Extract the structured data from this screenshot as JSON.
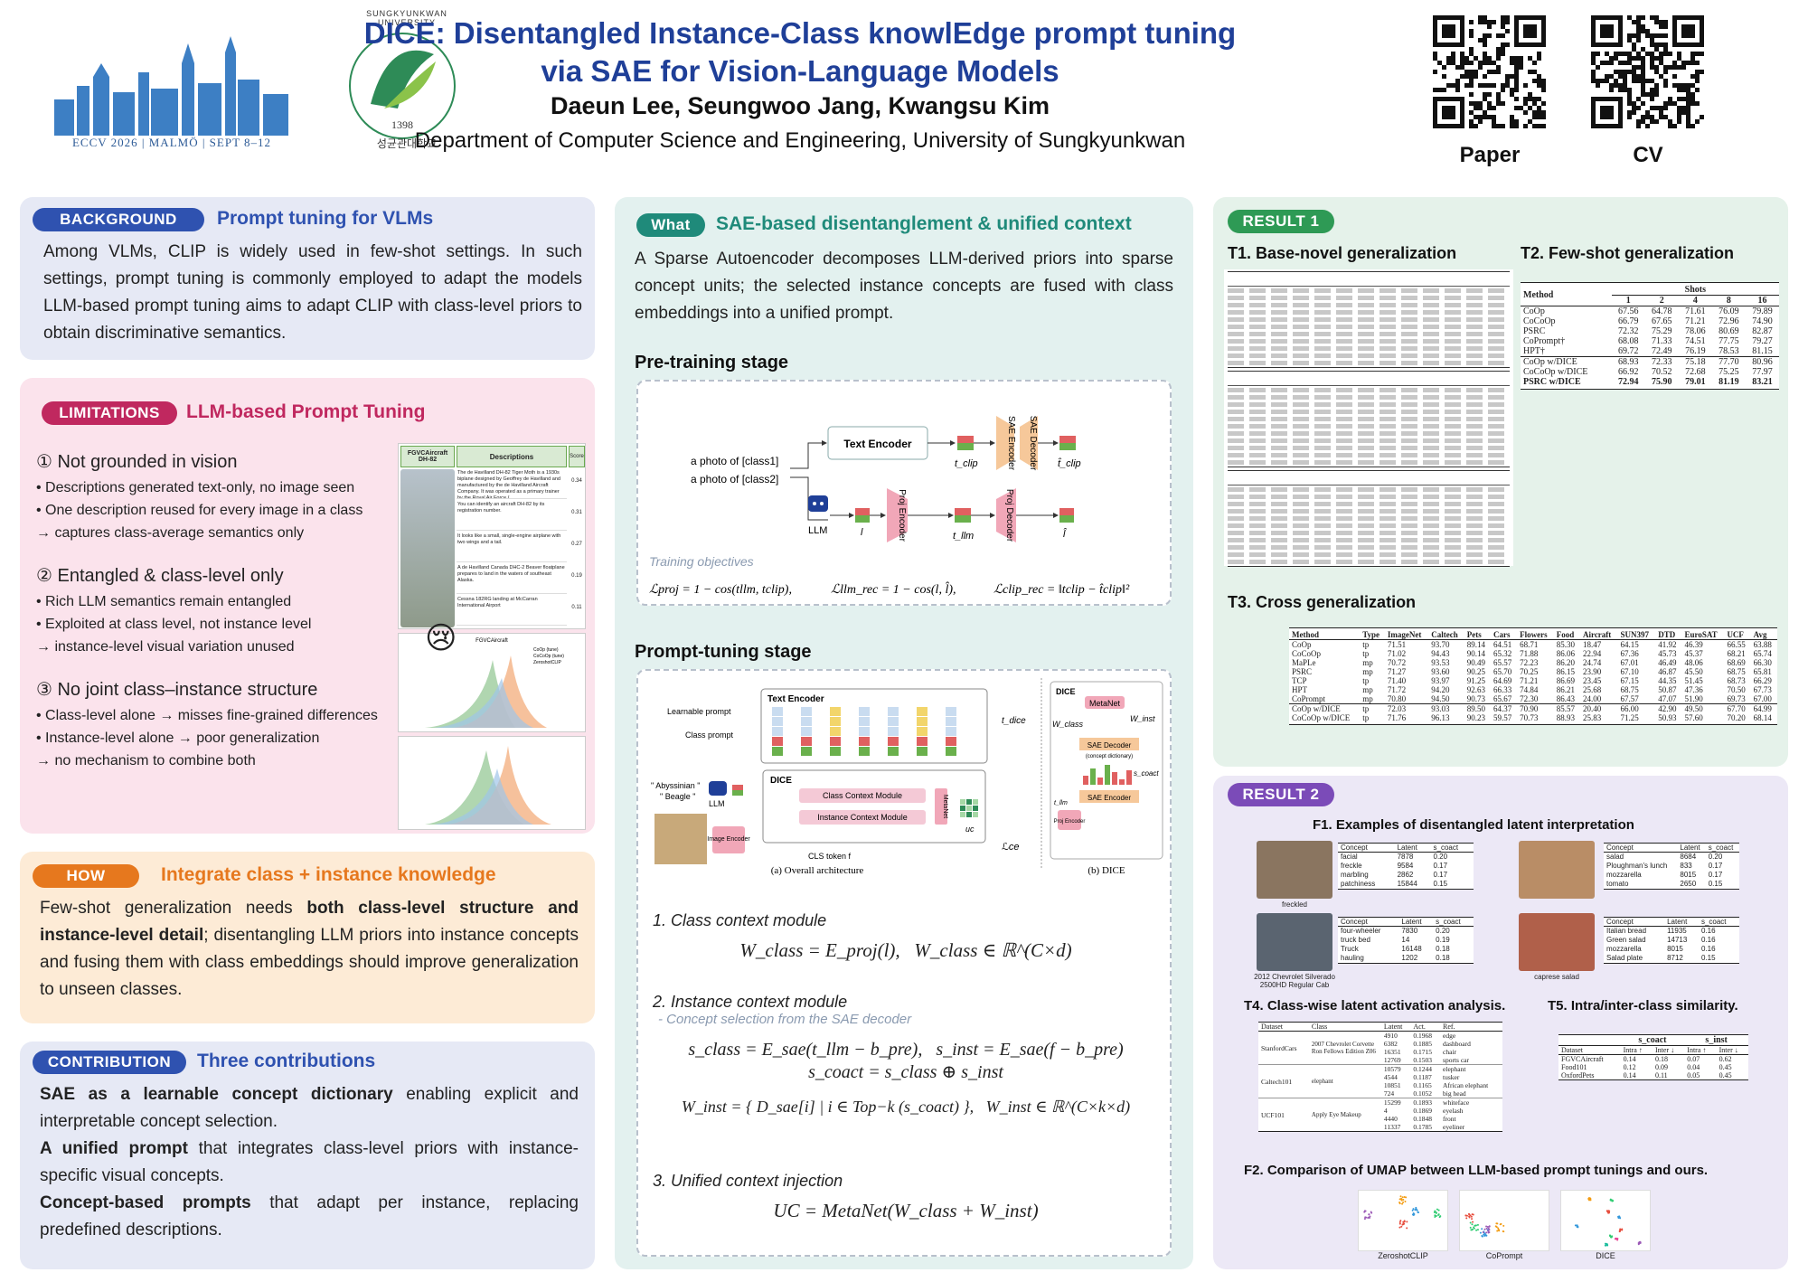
{
  "header": {
    "title_line1": "DICE: Disentangled Instance-Class knowlEdge prompt tuning",
    "title_line2": "via SAE for Vision-Language Models",
    "authors": "Daeun Lee, Seungwoo Jang, Kwangsu Kim",
    "affiliation": "Department of Computer Science and Engineering, University of Sungkyunkwan",
    "conf_banner": "ECCV 2026 | MALMÖ | SEPT 8–12",
    "univ_name": "SUNGKYUNKWAN UNIVERSITY",
    "univ_year": "1398",
    "univ_korean": "성균관대학교",
    "qr_paper": "Paper",
    "qr_cv": "CV"
  },
  "background": {
    "pill": "BACKGROUND",
    "title": "Prompt tuning for VLMs",
    "body": "Among VLMs, CLIP is widely used in few-shot settings. In such settings, prompt tuning is commonly employed to adapt the models LLM-based prompt tuning aims to adapt CLIP with class-level priors to obtain discriminative semantics."
  },
  "limitations": {
    "pill": "LIMITATIONS",
    "title": "LLM-based Prompt Tuning",
    "items": [
      {
        "head": "① Not grounded in vision",
        "bullets": [
          "• Descriptions generated text-only, no image seen",
          "• One description reused for every image in a class",
          "→ captures class-average semantics only"
        ]
      },
      {
        "head": "② Entangled & class-level only",
        "bullets": [
          "• Rich LLM semantics remain entangled",
          "• Exploited at class level, not instance level",
          "→ instance-level visual variation unused"
        ]
      },
      {
        "head": "③ No joint class–instance structure",
        "bullets": [
          "• Class-level alone → misses fine-grained differences",
          "• Instance-level alone → poor generalization",
          "→ no mechanism to combine both"
        ]
      }
    ],
    "fig_col1": "FGVCAircraft DH-82",
    "fig_col2": "Descriptions",
    "fig_col3": "Score",
    "fig_rows": [
      {
        "text": "The de Havilland DH-82 Tiger Moth is a 1930s biplane designed by Geoffrey de Havilland and manufactured by the de Havilland Aircraft Company. It was operated as a primary trainer by the Royal Air Force (",
        "score": "0.34"
      },
      {
        "text": "You can identify an aircraft DH-82 by its registration number.",
        "score": "0.31"
      },
      {
        "text": "It looks like a small, single-engine airplane with two wings and a tail.",
        "score": "0.27"
      },
      {
        "text": "A de Havilland Canada DHC-2 Beaver floatplane prepares to land in the waters of southeast Alaska.",
        "score": "0.19"
      },
      {
        "text": "Cessna 182RG landing at McCarran International Airport",
        "score": "0.11"
      }
    ],
    "hist_title": "FGVCAircraft",
    "hist_legend": [
      "CoOp (tune)",
      "CoCoOp (tune)",
      "ZeroshotCLIP"
    ],
    "emoji": "😢"
  },
  "how": {
    "pill": "HOW",
    "title": "Integrate class + instance knowledge",
    "pre": "Few-shot generalization needs ",
    "bold1": "both class-level structure and instance-level detail",
    "post": "; disentangling LLM priors into instance concepts and fusing them with class embeddings should improve generalization to unseen classes."
  },
  "contribution": {
    "pill": "CONTRIBUTION",
    "title": "Three contributions",
    "items": [
      {
        "bold": "SAE as a learnable concept dictionary",
        "rest": " enabling explicit and interpretable concept selection."
      },
      {
        "bold": "A unified prompt",
        "rest": " that integrates class-level priors with instance-specific visual concepts."
      },
      {
        "bold": "Concept-based prompts",
        "rest": " that adapt per instance, replacing predefined descriptions."
      }
    ]
  },
  "what": {
    "pill": "What",
    "title": "SAE-based disentanglement & unified context",
    "body": "A Sparse Autoencoder decomposes LLM-derived priors into sparse concept units; the selected instance concepts are fused with class embeddings into a unified prompt.",
    "pretrain_title": "Pre-training stage",
    "prompt1": "a photo of [class1]",
    "prompt2": "a photo of [class2]",
    "text_encoder": "Text Encoder",
    "sae_encoder": "SAE Encoder",
    "sae_decoder": "SAE Decoder",
    "proj_encoder": "Proj Encoder",
    "proj_decoder": "Proj Decoder",
    "llm": "LLM",
    "t_clip": "t_clip",
    "t_clip_hat": "t̂_clip",
    "l": "l",
    "t_llm": "t_llm",
    "l_hat": "l̂",
    "objectives_label": "Training objectives",
    "eq_proj": "ℒproj = 1 − cos(tllm, tclip),",
    "eq_llm": "ℒllm_rec = 1 − cos(l, l̂),",
    "eq_clip": "ℒclip_rec = ‖tclip − t̂clip‖²",
    "prompttune_title": "Prompt-tuning stage",
    "learnable_prompt": "Learnable prompt",
    "class_prompt": "Class prompt",
    "dice_label": "DICE",
    "class_ctx": "Class Context Module",
    "inst_ctx": "Instance Context Module",
    "metanet": "MetaNet",
    "image_encoder": "Image Encoder",
    "cls_token": "CLS token f",
    "abyssinian": "\" Abyssinian \"",
    "beagle": "\" Beagle \"",
    "uc": "uc",
    "t_dice": "t_dice",
    "l_ce": "ℒce",
    "cap_a": "(a) Overall architecture",
    "cap_b": "(b) DICE",
    "w_class": "W_class",
    "w_inst": "W_inst",
    "s_coact": "s_coact",
    "concept_dict": "(concept dictionary)",
    "m1_title": "1. Class context module",
    "m1_eq": "W_class = E_proj(l),   W_class ∈ ℝ^(C×d)",
    "m2_title": "2. Instance context module",
    "m2_sub": "- Concept selection from the SAE decoder",
    "m2_eq1": "s_class = E_sae(t_llm − b_pre),   s_inst = E_sae(f − b_pre)",
    "m2_eq2": "s_coact = s_class ⊕ s_inst",
    "m2_eq3": "W_inst = { D_sae[i] | i ∈ Top−k (s_coact) },   W_inst ∈ ℝ^(C×k×d)",
    "m3_title": "3. Unified context injection",
    "m3_eq": "UC = MetaNet(W_class + W_inst)"
  },
  "result1": {
    "pill": "RESULT 1",
    "t1_title": "T1. Base-novel generalization",
    "t2_title": "T2. Few-shot generalization",
    "t3_title": "T3. Cross generalization",
    "t2_header": [
      "Method",
      "1",
      "2",
      "4",
      "8",
      "16"
    ],
    "t2_shots": "Shots",
    "t2_rows": [
      [
        "CoOp",
        "67.56",
        "64.78",
        "71.61",
        "76.09",
        "79.89"
      ],
      [
        "CoCoOp",
        "66.79",
        "67.65",
        "71.21",
        "72.96",
        "74.90"
      ],
      [
        "PSRC",
        "72.32",
        "75.29",
        "78.06",
        "80.69",
        "82.87"
      ],
      [
        "CoPrompt†",
        "68.08",
        "71.33",
        "74.51",
        "77.75",
        "79.27"
      ],
      [
        "HPT†",
        "69.72",
        "72.49",
        "76.19",
        "78.53",
        "81.15"
      ]
    ],
    "t2_ours": [
      [
        "CoOp w/DICE",
        "68.93",
        "72.33",
        "75.18",
        "77.70",
        "80.96"
      ],
      [
        "CoCoOp w/DICE",
        "66.92",
        "70.52",
        "72.68",
        "75.25",
        "77.97"
      ],
      [
        "PSRC w/DICE",
        "72.94",
        "75.90",
        "79.01",
        "81.19",
        "83.21"
      ]
    ],
    "t3_header": [
      "Method",
      "Type",
      "ImageNet",
      "Caltech",
      "Pets",
      "Cars",
      "Flowers",
      "Food",
      "Aircraft",
      "SUN397",
      "DTD",
      "EuroSAT",
      "UCF",
      "Avg"
    ],
    "t3_rows": [
      [
        "CoOp",
        "tp",
        "71.51",
        "93.70",
        "89.14",
        "64.51",
        "68.71",
        "85.30",
        "18.47",
        "64.15",
        "41.92",
        "46.39",
        "66.55",
        "63.88"
      ],
      [
        "CoCoOp",
        "tp",
        "71.02",
        "94.43",
        "90.14",
        "65.32",
        "71.88",
        "86.06",
        "22.94",
        "67.36",
        "45.73",
        "45.37",
        "68.21",
        "65.74"
      ],
      [
        "MaPLe",
        "mp",
        "70.72",
        "93.53",
        "90.49",
        "65.57",
        "72.23",
        "86.20",
        "24.74",
        "67.01",
        "46.49",
        "48.06",
        "68.69",
        "66.30"
      ],
      [
        "PSRC",
        "mp",
        "71.27",
        "93.60",
        "90.25",
        "65.70",
        "70.25",
        "86.15",
        "23.90",
        "67.10",
        "46.87",
        "45.50",
        "68.75",
        "65.81"
      ],
      [
        "TCP",
        "tp",
        "71.40",
        "93.97",
        "91.25",
        "64.69",
        "71.21",
        "86.69",
        "23.45",
        "67.15",
        "44.35",
        "51.45",
        "68.73",
        "66.29"
      ],
      [
        "HPT",
        "mp",
        "71.72",
        "94.20",
        "92.63",
        "66.33",
        "74.84",
        "86.21",
        "25.68",
        "68.75",
        "50.87",
        "47.36",
        "70.50",
        "67.73"
      ],
      [
        "CoPrompt",
        "mp",
        "70.80",
        "94.50",
        "90.73",
        "65.67",
        "72.30",
        "86.43",
        "24.00",
        "67.57",
        "47.07",
        "51.90",
        "69.73",
        "67.00"
      ]
    ],
    "t3_ours": [
      [
        "CoOp w/DICE",
        "tp",
        "72.03",
        "93.03",
        "89.50",
        "64.37",
        "70.90",
        "85.57",
        "20.40",
        "66.00",
        "42.90",
        "49.50",
        "67.70",
        "64.99"
      ],
      [
        "CoCoOp w/DICE",
        "tp",
        "71.76",
        "96.13",
        "90.23",
        "59.57",
        "70.73",
        "88.93",
        "25.83",
        "71.25",
        "50.93",
        "57.60",
        "70.20",
        "68.14"
      ]
    ]
  },
  "result2": {
    "pill": "RESULT 2",
    "f1_title": "F1. Examples of disentangled latent interpretation",
    "f1_headers": [
      "Concept",
      "Latent",
      "s_coact"
    ],
    "f1_a": [
      [
        "facial",
        "7878",
        "0.20"
      ],
      [
        "freckle",
        "9584",
        "0.17"
      ],
      [
        "marbling",
        "2862",
        "0.17"
      ],
      [
        "patchiness",
        "15844",
        "0.15"
      ]
    ],
    "f1_a_cap": "freckled",
    "f1_b": [
      [
        "salad",
        "8684",
        "0.20"
      ],
      [
        "Ploughman's lunch",
        "833",
        "0.17"
      ],
      [
        "mozzarella",
        "8015",
        "0.17"
      ],
      [
        "tomato",
        "2650",
        "0.15"
      ]
    ],
    "f1_c": [
      [
        "four-wheeler",
        "7830",
        "0.20"
      ],
      [
        "truck bed",
        "14",
        "0.19"
      ],
      [
        "Truck",
        "16148",
        "0.18"
      ],
      [
        "hauling",
        "1202",
        "0.18"
      ]
    ],
    "f1_c_cap": "2012 Chevrolet Silverado 2500HD Regular Cab",
    "f1_d": [
      [
        "Italian bread",
        "11935",
        "0.16"
      ],
      [
        "Green salad",
        "14713",
        "0.16"
      ],
      [
        "mozzarella",
        "8015",
        "0.16"
      ],
      [
        "Salad plate",
        "8712",
        "0.15"
      ]
    ],
    "f1_d_cap": "caprese salad",
    "t4_title": "T4. Class-wise latent activation analysis.",
    "t4_headers": [
      "Dataset",
      "Class",
      "Latent",
      "Act.",
      "Ref."
    ],
    "t4_groups": [
      {
        "dataset": "StanfordCars",
        "cls": "2007 Chevrolet Corvette Ron Fellows Edition Z06",
        "rows": [
          [
            "4910",
            "0.1968",
            "edge"
          ],
          [
            "6382",
            "0.1885",
            "dashboard"
          ],
          [
            "16351",
            "0.1715",
            "chair"
          ],
          [
            "12769",
            "0.1503",
            "sports car"
          ]
        ]
      },
      {
        "dataset": "Caltech101",
        "cls": "elephant",
        "rows": [
          [
            "10579",
            "0.1244",
            "elephant"
          ],
          [
            "4544",
            "0.1187",
            "tusker"
          ],
          [
            "10851",
            "0.1165",
            "African elephant"
          ],
          [
            "724",
            "0.1052",
            "big head"
          ]
        ]
      },
      {
        "dataset": "UCF101",
        "cls": "Apply Eye Makeup",
        "rows": [
          [
            "15299",
            "0.1893",
            "whiteface"
          ],
          [
            "4",
            "0.1869",
            "eyelash"
          ],
          [
            "4440",
            "0.1848",
            "front"
          ],
          [
            "11337",
            "0.1785",
            "eyeliner"
          ]
        ]
      }
    ],
    "t5_title": "T5. Intra/inter-class similarity.",
    "t5_headers": [
      "Dataset",
      "Intra ↑",
      "Inter ↓",
      "Intra ↑",
      "Inter ↓"
    ],
    "t5_groups": [
      "s_coact",
      "s_inst"
    ],
    "t5_rows": [
      [
        "FGVCAircraft",
        "0.14",
        "0.18",
        "0.07",
        "0.62"
      ],
      [
        "Food101",
        "0.12",
        "0.09",
        "0.04",
        "0.45"
      ],
      [
        "OxfordPets",
        "0.14",
        "0.11",
        "0.05",
        "0.45"
      ]
    ],
    "f2_title": "F2. Comparison of UMAP between LLM-based prompt tunings and ours.",
    "f2_labels": [
      "ZeroshotCLIP",
      "CoPrompt",
      "DICE"
    ]
  },
  "colors": {
    "navy": "#1f3f98",
    "bg_blue": "#e6e9f5",
    "bg_pink": "#fbe3ec",
    "bg_orange": "#fdebd6",
    "bg_green": "#e5f2ea",
    "bg_teal": "#e3f1ef",
    "bg_lav": "#ece8f6"
  }
}
